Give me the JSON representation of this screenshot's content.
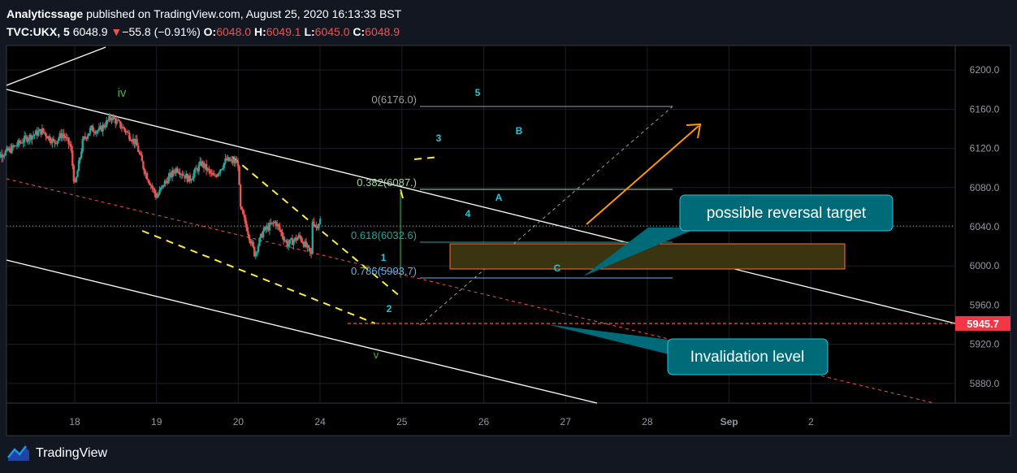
{
  "header": {
    "author": "Analyticssage",
    "published_text": "published on TradingView.com, August 25, 2020 16:13:33 BST",
    "symbol": "TVC:UKX, 5",
    "last_price": "6048.9",
    "change_arrow": "▼",
    "change": "−55.8 (−0.91%)",
    "o_label": "O:",
    "o_value": "6048.0",
    "h_label": "H:",
    "h_value": "6049.1",
    "l_label": "L:",
    "l_value": "6045.0",
    "c_label": "C:",
    "c_value": "6048.9"
  },
  "footer": {
    "brand": "TradingView"
  },
  "colors": {
    "background": "#131722",
    "up_candle": "#26a69a",
    "down_candle": "#ef5350",
    "wave_label": "#26c6da",
    "major_wave_label": "#4caf50",
    "yellow_dashed": "#ffeb3b",
    "orange_arrow": "#ff9800",
    "callout_bg": "#006b78",
    "zone_fill": "#3b3410",
    "zone_border": "#ff6f3c",
    "price_tag": "#f23645"
  },
  "chart_data": {
    "type": "candlestick",
    "symbol": "UKX",
    "timeframe": "5",
    "x_ticks": [
      "18",
      "19",
      "20",
      "24",
      "25",
      "26",
      "27",
      "28",
      "Sep",
      "2"
    ],
    "y_ticks": [
      "6200.0",
      "6160.0",
      "6120.0",
      "6080.0",
      "6040.0",
      "6000.0",
      "5960.0",
      "5920.0",
      "5880.0"
    ],
    "ylim": [
      5860,
      6225
    ],
    "current_price": 6048.9,
    "price_tag": "5945.7",
    "price_path": [
      [
        17.0,
        6110
      ],
      [
        17.2,
        6118
      ],
      [
        17.4,
        6130
      ],
      [
        17.6,
        6138
      ],
      [
        17.75,
        6126
      ],
      [
        17.85,
        6135
      ],
      [
        17.95,
        6122
      ],
      [
        18.0,
        6080
      ],
      [
        18.1,
        6128
      ],
      [
        18.2,
        6140
      ],
      [
        18.3,
        6138
      ],
      [
        18.45,
        6152
      ],
      [
        18.6,
        6140
      ],
      [
        18.75,
        6125
      ],
      [
        18.85,
        6098
      ],
      [
        19.0,
        6070
      ],
      [
        19.1,
        6085
      ],
      [
        19.25,
        6100
      ],
      [
        19.4,
        6088
      ],
      [
        19.55,
        6105
      ],
      [
        19.7,
        6090
      ],
      [
        19.85,
        6108
      ],
      [
        20.0,
        6105
      ],
      [
        20.02,
        6060
      ],
      [
        20.1,
        6040
      ],
      [
        20.2,
        6012
      ],
      [
        20.3,
        6035
      ],
      [
        20.45,
        6045
      ],
      [
        20.6,
        6022
      ],
      [
        20.75,
        6030
      ],
      [
        20.9,
        6010
      ],
      [
        21.05,
        6018
      ],
      [
        21.2,
        6005
      ],
      [
        21.35,
        6000
      ],
      [
        21.5,
        6015
      ],
      [
        21.65,
        5995
      ],
      [
        21.75,
        5970
      ],
      [
        21.8,
        5950
      ],
      [
        21.9,
        5975
      ],
      [
        22.0,
        5992
      ],
      [
        22.03,
        6058
      ],
      [
        22.1,
        6080
      ],
      [
        22.2,
        6098
      ],
      [
        22.3,
        6100
      ],
      [
        22.45,
        6106
      ],
      [
        22.6,
        6102
      ],
      [
        22.75,
        6082
      ],
      [
        22.9,
        6100
      ],
      [
        23.0,
        6105
      ],
      [
        23.03,
        6168
      ],
      [
        23.1,
        6145
      ],
      [
        23.25,
        6115
      ],
      [
        23.4,
        6112
      ],
      [
        23.55,
        6115
      ],
      [
        23.65,
        6110
      ],
      [
        23.75,
        6085
      ],
      [
        23.85,
        6055
      ],
      [
        23.95,
        6040
      ],
      [
        24.0,
        6047
      ]
    ],
    "annotations": {
      "major_waves": [
        "iv",
        "v"
      ],
      "wave_labels": [
        "1",
        "2",
        "3",
        "4",
        "5",
        "A",
        "B",
        "C"
      ],
      "fib_levels": [
        "0(6176.0)",
        "0.382(6087.)",
        "0.618(6032.6)",
        "0.786(5993.7)"
      ],
      "callouts": [
        "possible reversal target",
        "Invalidation level"
      ]
    }
  }
}
